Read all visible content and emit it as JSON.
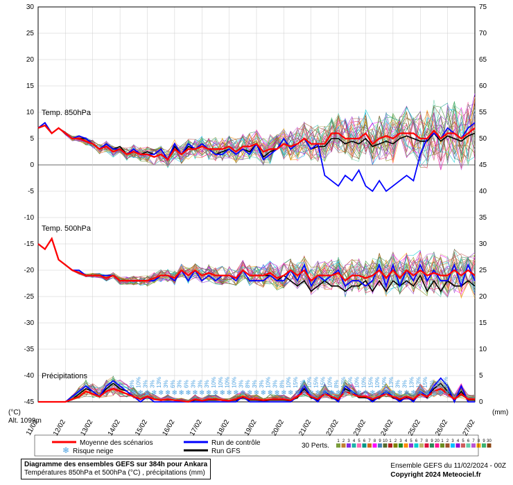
{
  "meta": {
    "title": "Diagramme des ensembles GEFS sur 384h pour Ankara",
    "subtitle": "Températures 850hPa et 500hPa (°C) , précipitations (mm)",
    "source_line": "Ensemble GEFS du 11/02/2024 - 00Z",
    "copyright": "Copyright 2024 Meteociel.fr",
    "altitude_label": "Alt. 1099m"
  },
  "axes": {
    "left_label": "(°C)",
    "right_label": "(mm)",
    "y_left_min": -45,
    "y_left_max": 30,
    "y_left_step": 5,
    "y_right_min": 0,
    "y_right_max": 75,
    "y_right_step": 5,
    "x_labels": [
      "11/02",
      "12/02",
      "13/02",
      "14/02",
      "15/02",
      "16/02",
      "17/02",
      "18/02",
      "19/02",
      "20/02",
      "21/02",
      "22/02",
      "23/02",
      "24/02",
      "25/02",
      "26/02",
      "27/02"
    ],
    "x_points": 65
  },
  "panel_labels": {
    "t850": "Temp. 850hPa",
    "t500": "Temp. 500hPa",
    "precip": "Précipitations"
  },
  "legend": {
    "mean": "Moyenne des scénarios",
    "control": "Run de contrôle",
    "gfs": "Run GFS",
    "perts": "30 Perts.",
    "snow": "Risque neige"
  },
  "colors": {
    "mean": "#ff0000",
    "control": "#0000ff",
    "gfs": "#000000",
    "grid": "#cccccc",
    "zero_line": "#888888",
    "axis": "#000000",
    "background": "#ffffff",
    "snow_icon": "#4aa0e0",
    "pert_palette": [
      "#7b9e3c",
      "#c08030",
      "#8a2be2",
      "#20b2aa",
      "#ff69b4",
      "#009688",
      "#d2691e",
      "#ff00ff",
      "#4682b4",
      "#556b2f",
      "#b22222",
      "#808000",
      "#228b22",
      "#ff8c00",
      "#9932cc",
      "#00ced1",
      "#bdb76b",
      "#dc143c",
      "#2e8b57",
      "#ff1493",
      "#6b8e23",
      "#a0522d",
      "#00bfff",
      "#9400d3",
      "#cd5c5c",
      "#66cdaa",
      "#ba55d3",
      "#ffa500",
      "#3cb371",
      "#8b4513"
    ]
  },
  "snow_risk": {
    "start_index": 14,
    "percents": [
      "8%",
      "10%",
      "3%",
      "3%",
      "13%",
      "3%",
      "6%",
      "3%",
      "6%",
      "3%",
      "3%",
      "3%",
      "10%",
      "10%",
      "10%",
      "10%",
      "3%",
      "8%",
      "3%",
      "3%",
      "10%",
      "3%",
      "8%",
      "10%",
      "15%",
      "3%",
      "10%",
      "15%",
      "15%",
      "10%",
      "8%",
      "13%",
      "15%",
      "10%",
      "10%",
      "15%",
      "10%",
      "10%",
      "13%",
      "3%",
      "3%",
      "13%",
      "13%",
      "15%",
      "3%",
      "3%",
      "10%"
    ]
  },
  "series": {
    "t850_mean": [
      7,
      7.5,
      6,
      7,
      6,
      5,
      5,
      4.5,
      4,
      3,
      3.5,
      2.5,
      3,
      2,
      2.5,
      2,
      2,
      1.5,
      2,
      1,
      3,
      2,
      3,
      3,
      3.5,
      3,
      3,
      3,
      3.5,
      2.5,
      3.5,
      3.5,
      4,
      2.5,
      3,
      3,
      4,
      3.5,
      4,
      5,
      4,
      4,
      4,
      6,
      6,
      5,
      5,
      5,
      6,
      4,
      5,
      5.5,
      5,
      6,
      6,
      6,
      5,
      5,
      6.5,
      5,
      6,
      6,
      5,
      6,
      7
    ],
    "t850_control": [
      7,
      8,
      6,
      7,
      6,
      5,
      5.5,
      5,
      4,
      3,
      4,
      3,
      3,
      2,
      3,
      2,
      2,
      2,
      3,
      1,
      4,
      2,
      4,
      3,
      4,
      3,
      2,
      2,
      3,
      2,
      3,
      2,
      4,
      1,
      2,
      3,
      5,
      3,
      4,
      5,
      3,
      4,
      -2,
      -3,
      -4,
      -2,
      -3,
      -1,
      -4,
      -5,
      -3,
      -5,
      -4,
      -3,
      -2,
      -3,
      2,
      5,
      6,
      5,
      7,
      6,
      5,
      7,
      8
    ],
    "t850_gfs": [
      7,
      8,
      6,
      7,
      6,
      5,
      5,
      5,
      4,
      3,
      4,
      3,
      3.5,
      2,
      3,
      2,
      2.5,
      2,
      3,
      1,
      3.5,
      2,
      3.5,
      3,
      4,
      3,
      2,
      2.5,
      3,
      2,
      3,
      2.5,
      4,
      1.5,
      2.5,
      3,
      5,
      3,
      4,
      5,
      3,
      3.5,
      3.5,
      5,
      5,
      4,
      4.5,
      4,
      5,
      3.5,
      4,
      4.5,
      4,
      5,
      5.5,
      5,
      4.5,
      4.5,
      6,
      4.5,
      5.5,
      5,
      4.5,
      5.5,
      6
    ],
    "t850_pert_offsets": [
      0,
      0,
      0,
      0,
      0.2,
      0.3,
      0.4,
      0.5,
      0.5,
      0.6,
      0.7,
      0.7,
      0.8,
      0.8,
      0.9,
      0.9,
      1,
      1,
      1.1,
      1.1,
      1.2,
      1.2,
      1.3,
      1.3,
      1.4,
      1.4,
      1.5,
      1.5,
      1.6,
      1.6,
      1.7,
      1.7,
      1.8,
      1.8,
      1.9,
      2,
      2,
      2.1,
      2.2,
      2.2,
      2.3,
      2.4,
      2.4,
      2.5,
      2.6,
      2.7,
      2.8,
      2.9,
      3,
      3,
      3.1,
      3.2,
      3.3,
      3.4,
      3.5,
      3.6,
      3.7,
      3.8,
      3.9,
      4,
      4,
      4.1,
      4.2,
      4.3,
      4.4
    ],
    "t500_mean": [
      -15,
      -16,
      -14,
      -18,
      -19,
      -20,
      -20.5,
      -21,
      -21,
      -21,
      -21.5,
      -21,
      -22,
      -22,
      -22,
      -22,
      -22,
      -21.5,
      -21,
      -21,
      -21.5,
      -20,
      -21,
      -20,
      -21,
      -20.5,
      -21,
      -21,
      -21,
      -21.5,
      -20,
      -21,
      -21,
      -21,
      -20.5,
      -21.5,
      -21,
      -20,
      -21,
      -20,
      -22,
      -21,
      -21,
      -21,
      -20.5,
      -22,
      -21,
      -21,
      -21.5,
      -21,
      -20,
      -21.5,
      -20,
      -21.5,
      -20,
      -21,
      -20,
      -21,
      -20.5,
      -21,
      -21,
      -20,
      -21,
      -20,
      -21
    ],
    "t500_control": [
      -15,
      -16,
      -14,
      -18,
      -19,
      -20,
      -20,
      -21,
      -21,
      -21,
      -21,
      -21,
      -22,
      -22,
      -22,
      -22,
      -22,
      -22,
      -21,
      -21,
      -22,
      -20,
      -22,
      -20,
      -22,
      -21,
      -22,
      -21,
      -21,
      -22,
      -20,
      -22,
      -22,
      -22,
      -21,
      -22,
      -22,
      -20,
      -22,
      -19,
      -23,
      -21,
      -22,
      -21,
      -20,
      -23,
      -22,
      -22,
      -23,
      -22,
      -19,
      -23,
      -19,
      -23,
      -20,
      -22,
      -19,
      -22,
      -20,
      -22,
      -22,
      -19,
      -23,
      -19,
      -22
    ],
    "t500_gfs": [
      -15,
      -16,
      -14,
      -18,
      -19,
      -20,
      -20.5,
      -21,
      -21,
      -21,
      -21,
      -21,
      -22,
      -22,
      -22,
      -22,
      -22,
      -21.5,
      -21,
      -21,
      -21.5,
      -20,
      -21,
      -20,
      -21,
      -20.5,
      -21,
      -21,
      -21,
      -21.5,
      -20,
      -21,
      -21,
      -21,
      -21,
      -22,
      -21,
      -22,
      -23,
      -22,
      -24,
      -23,
      -22,
      -23,
      -23,
      -24,
      -23,
      -23,
      -22,
      -24,
      -22,
      -24,
      -22,
      -23,
      -22,
      -23,
      -21,
      -24,
      -22,
      -24,
      -22,
      -23,
      -23,
      -22,
      -23
    ],
    "t500_pert_offsets": [
      0,
      0,
      0,
      0,
      0.1,
      0.1,
      0.2,
      0.2,
      0.3,
      0.3,
      0.4,
      0.4,
      0.5,
      0.5,
      0.6,
      0.6,
      0.7,
      0.7,
      0.8,
      0.8,
      0.9,
      0.9,
      1,
      1,
      1,
      1.1,
      1.1,
      1.2,
      1.2,
      1.3,
      1.3,
      1.4,
      1.4,
      1.5,
      1.5,
      1.6,
      1.6,
      1.7,
      1.7,
      1.8,
      1.8,
      1.9,
      1.9,
      2,
      2,
      2.1,
      2.1,
      2.2,
      2.2,
      2.3,
      2.3,
      2.4,
      2.4,
      2.5,
      2.5,
      2.6,
      2.6,
      2.7,
      2.7,
      2.8,
      2.8,
      2.9,
      2.9,
      3,
      3
    ],
    "precip_mean": [
      0,
      0,
      0,
      0,
      0,
      0.5,
      1,
      2,
      1.5,
      1,
      2,
      2.5,
      2,
      1.5,
      1,
      0.5,
      1,
      0.5,
      0.3,
      0.5,
      0.3,
      0.2,
      0,
      0.5,
      0.2,
      0.5,
      0.5,
      0.3,
      0.2,
      0.5,
      1,
      0.5,
      0.5,
      0.3,
      0.5,
      0.5,
      0.5,
      0.3,
      1,
      2,
      1,
      0.5,
      1.5,
      1,
      0.5,
      2,
      1.5,
      1,
      1,
      0.5,
      1,
      1.5,
      1,
      0.5,
      1,
      0.5,
      1.5,
      1,
      2,
      2.5,
      1.5,
      0.5,
      1.5,
      0.5,
      0.5
    ],
    "precip_control": [
      0,
      0,
      0,
      0,
      0,
      1,
      2,
      3,
      2,
      1,
      3,
      4,
      3,
      2,
      1,
      0,
      1,
      0,
      0,
      0,
      0,
      0,
      0,
      0,
      0,
      0,
      0,
      0,
      0,
      0,
      1,
      0,
      0,
      0,
      0,
      0,
      0,
      0,
      1,
      3,
      1,
      0,
      2,
      1,
      0,
      3,
      2,
      1,
      1,
      0,
      1,
      2,
      1,
      0,
      1,
      0,
      2,
      1,
      3,
      4.5,
      3,
      0,
      3,
      0,
      0
    ],
    "precip_gfs": [
      0,
      0,
      0,
      0,
      0,
      0.5,
      1.5,
      2.5,
      2,
      1,
      2.5,
      3.5,
      2.5,
      2,
      1,
      0.5,
      1,
      0.5,
      0.3,
      0.3,
      0.3,
      0.2,
      0,
      0.3,
      0.2,
      0.3,
      0.3,
      0.3,
      0.2,
      0.3,
      0.8,
      0.3,
      0.3,
      0.2,
      0.3,
      0.3,
      0.3,
      0.2,
      0.8,
      2.5,
      0.8,
      0.3,
      1.8,
      0.8,
      0.3,
      2.5,
      1.8,
      0.8,
      0.8,
      0.3,
      0.8,
      1.8,
      0.8,
      0.3,
      0.8,
      0.3,
      1.8,
      0.8,
      2.5,
      3.5,
      2.0,
      0.3,
      2.0,
      0.3,
      0.3
    ],
    "precip_pert_scale": [
      0,
      0,
      0,
      0,
      0,
      1,
      2,
      3,
      2.5,
      2,
      3,
      3.5,
      3,
      2.5,
      2,
      1,
      1.5,
      1,
      0.5,
      1,
      0.5,
      0.5,
      0.3,
      1,
      0.5,
      1,
      1,
      0.5,
      0.5,
      1,
      1.5,
      1,
      1,
      0.5,
      1,
      1,
      1,
      0.5,
      1.5,
      3,
      1.5,
      1,
      2.5,
      1.5,
      1,
      3,
      2.5,
      1.5,
      1.5,
      1,
      1.5,
      2.5,
      1.5,
      1,
      1.5,
      1,
      2.5,
      1.5,
      3,
      3.5,
      2.5,
      1,
      2.5,
      1,
      1
    ]
  }
}
